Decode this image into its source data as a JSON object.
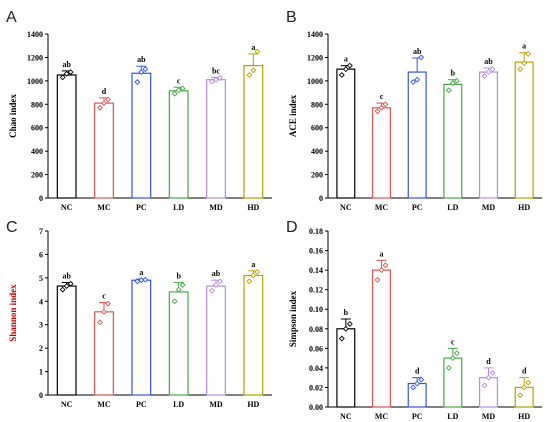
{
  "panel_labels": [
    "A",
    "B",
    "C",
    "D"
  ],
  "chart_data": [
    {
      "type": "bar",
      "panel": "A",
      "ylabel": "Chao index",
      "ylim": [
        0,
        1400
      ],
      "yticks": [
        0,
        200,
        400,
        600,
        800,
        1000,
        1200,
        1400
      ],
      "categories": [
        "NC",
        "MC",
        "PC",
        "LD",
        "MD",
        "HD"
      ],
      "values": [
        1050,
        810,
        1065,
        915,
        1010,
        1130
      ],
      "errors": [
        35,
        45,
        60,
        30,
        20,
        100
      ],
      "significance": [
        "ab",
        "d",
        "ab",
        "c",
        "bc",
        "a"
      ],
      "points": [
        [
          1030,
          1060,
          1075
        ],
        [
          770,
          810,
          840
        ],
        [
          990,
          1075,
          1100
        ],
        [
          890,
          920,
          935
        ],
        [
          995,
          1010,
          1025
        ],
        [
          1050,
          1090,
          1250
        ]
      ],
      "colors": [
        "#000000",
        "#d9534f",
        "#3355dd",
        "#44aa44",
        "#b58de0",
        "#b8a000"
      ]
    },
    {
      "type": "bar",
      "panel": "B",
      "ylabel": "ACE index",
      "ylim": [
        0,
        1400
      ],
      "yticks": [
        0,
        200,
        400,
        600,
        800,
        1000,
        1200,
        1400
      ],
      "categories": [
        "NC",
        "MC",
        "PC",
        "LD",
        "MD",
        "HD"
      ],
      "values": [
        1100,
        770,
        1075,
        970,
        1075,
        1160
      ],
      "errors": [
        30,
        40,
        120,
        40,
        35,
        80
      ],
      "significance": [
        "a",
        "c",
        "ab",
        "b",
        "ab",
        "a"
      ],
      "points": [
        [
          1050,
          1100,
          1130
        ],
        [
          740,
          770,
          800
        ],
        [
          990,
          1010,
          1200
        ],
        [
          920,
          980,
          1000
        ],
        [
          1040,
          1075,
          1100
        ],
        [
          1100,
          1150,
          1230
        ]
      ],
      "colors": [
        "#000000",
        "#d9534f",
        "#3355dd",
        "#44aa44",
        "#b58de0",
        "#b8a000"
      ]
    },
    {
      "type": "bar",
      "panel": "C",
      "ylabel": "Shannon index",
      "ylim": [
        0,
        7
      ],
      "yticks": [
        0,
        1,
        2,
        3,
        4,
        5,
        6,
        7
      ],
      "categories": [
        "NC",
        "MC",
        "PC",
        "LD",
        "MD",
        "HD"
      ],
      "values": [
        4.65,
        3.55,
        4.9,
        4.4,
        4.65,
        5.1
      ],
      "errors": [
        0.15,
        0.4,
        0.05,
        0.4,
        0.25,
        0.2
      ],
      "significance": [
        "ab",
        "c",
        "a",
        "b",
        "ab",
        "a"
      ],
      "points": [
        [
          4.5,
          4.65,
          4.75
        ],
        [
          3.1,
          3.55,
          3.9
        ],
        [
          4.85,
          4.9,
          4.92
        ],
        [
          4.0,
          4.5,
          4.7
        ],
        [
          4.45,
          4.7,
          4.85
        ],
        [
          4.85,
          5.1,
          5.25
        ]
      ],
      "colors": [
        "#000000",
        "#d9534f",
        "#3355dd",
        "#44aa44",
        "#b58de0",
        "#b8a000"
      ]
    },
    {
      "type": "bar",
      "panel": "D",
      "ylabel": "Simpson  index",
      "ylim": [
        0,
        0.18
      ],
      "yticks": [
        0.0,
        0.02,
        0.04,
        0.06,
        0.08,
        0.1,
        0.12,
        0.14,
        0.16,
        0.18
      ],
      "categories": [
        "NC",
        "MC",
        "PC",
        "LD",
        "MD",
        "HD"
      ],
      "values": [
        0.08,
        0.14,
        0.024,
        0.05,
        0.03,
        0.02
      ],
      "errors": [
        0.01,
        0.01,
        0.006,
        0.01,
        0.01,
        0.01
      ],
      "significance": [
        "b",
        "a",
        "d",
        "c",
        "d",
        "d"
      ],
      "points": [
        [
          0.07,
          0.08,
          0.085
        ],
        [
          0.13,
          0.14,
          0.145
        ],
        [
          0.02,
          0.024,
          0.028
        ],
        [
          0.04,
          0.05,
          0.055
        ],
        [
          0.022,
          0.03,
          0.035
        ],
        [
          0.012,
          0.02,
          0.025
        ]
      ],
      "colors": [
        "#000000",
        "#d9534f",
        "#3355dd",
        "#44aa44",
        "#b58de0",
        "#b8a000"
      ]
    }
  ]
}
